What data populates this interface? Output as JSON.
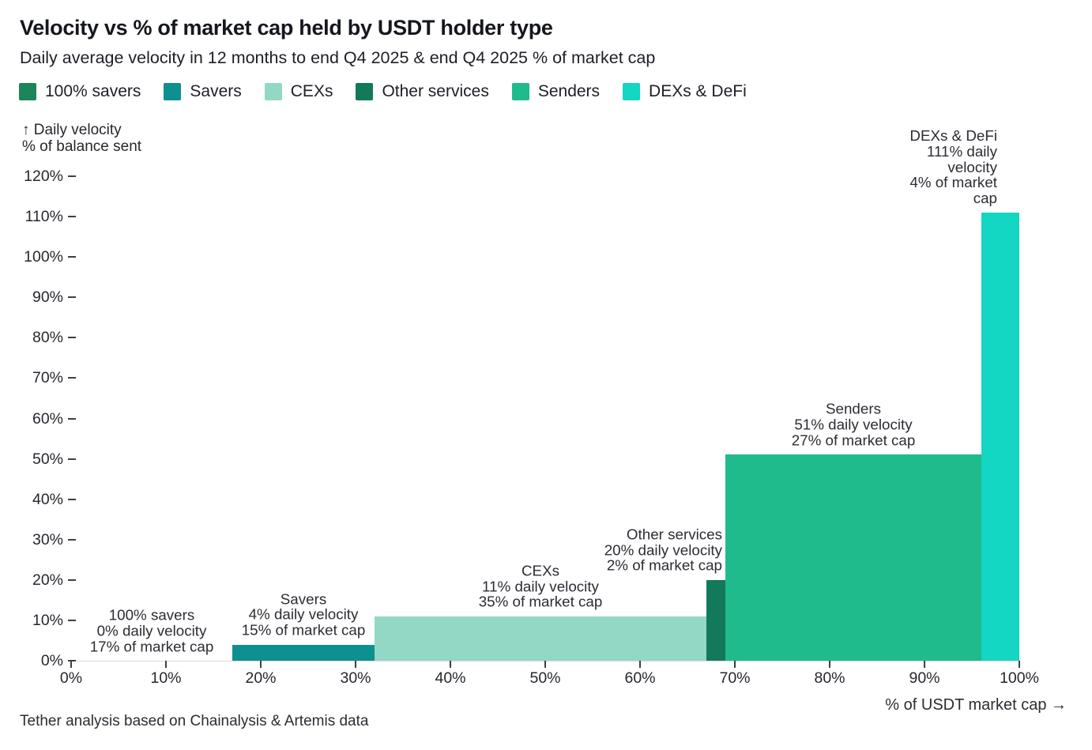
{
  "header": {
    "title": "Velocity vs % of market cap held by USDT holder type",
    "subtitle": "Daily average velocity in 12 months to end Q4 2025 & end Q4 2025 % of market cap"
  },
  "footer": {
    "source_note": "Tether analysis based on Chainalysis & Artemis data"
  },
  "chart_data": {
    "type": "bar",
    "variant": "variable-width-marimekko",
    "title": "Velocity vs % of market cap held by USDT holder type",
    "subtitle": "Daily average velocity in 12 months to end Q4 2025 & end Q4 2025 % of market cap",
    "grid": "off",
    "legend_position": "top",
    "x_axis": {
      "label": "% of USDT market cap →",
      "ticks": [
        "0%",
        "10%",
        "20%",
        "30%",
        "40%",
        "50%",
        "60%",
        "70%",
        "80%",
        "90%",
        "100%"
      ],
      "xlim": [
        0,
        100
      ]
    },
    "y_axis": {
      "label_lines": [
        "↑ Daily velocity",
        "% of balance sent"
      ],
      "ticks": [
        "0%",
        "10%",
        "20%",
        "30%",
        "40%",
        "50%",
        "60%",
        "70%",
        "80%",
        "90%",
        "100%",
        "110%",
        "120%"
      ],
      "ylim": [
        0,
        120
      ]
    },
    "series": [
      {
        "name": "100% savers",
        "daily_velocity_pct": 0,
        "market_cap_share_pct": 17,
        "color": "#1c8559",
        "annotation_lines": [
          "100% savers",
          "0% daily velocity",
          "17% of market cap"
        ],
        "annotation_align": "center"
      },
      {
        "name": "Savers",
        "daily_velocity_pct": 4,
        "market_cap_share_pct": 15,
        "color": "#0e8f90",
        "annotation_lines": [
          "Savers",
          "4% daily velocity",
          "15% of market cap"
        ],
        "annotation_align": "center"
      },
      {
        "name": "CEXs",
        "daily_velocity_pct": 11,
        "market_cap_share_pct": 35,
        "color": "#92d8c5",
        "annotation_lines": [
          "CEXs",
          "11% daily velocity",
          "35% of market cap"
        ],
        "annotation_align": "center"
      },
      {
        "name": "Other services",
        "daily_velocity_pct": 20,
        "market_cap_share_pct": 2,
        "color": "#12795a",
        "annotation_lines": [
          "Other services",
          "20% daily velocity",
          "2% of market cap"
        ],
        "annotation_align": "right"
      },
      {
        "name": "Senders",
        "daily_velocity_pct": 51,
        "market_cap_share_pct": 27,
        "color": "#20bb8c",
        "annotation_lines": [
          "Senders",
          "51% daily velocity",
          "27% of market cap"
        ],
        "annotation_align": "center"
      },
      {
        "name": "DEXs & DeFi",
        "daily_velocity_pct": 111,
        "market_cap_share_pct": 4,
        "color": "#13d6c3",
        "annotation_lines": [
          "DEXs & DeFi",
          "111% daily velocity",
          "4% of market cap"
        ],
        "annotation_align": "right"
      }
    ]
  }
}
